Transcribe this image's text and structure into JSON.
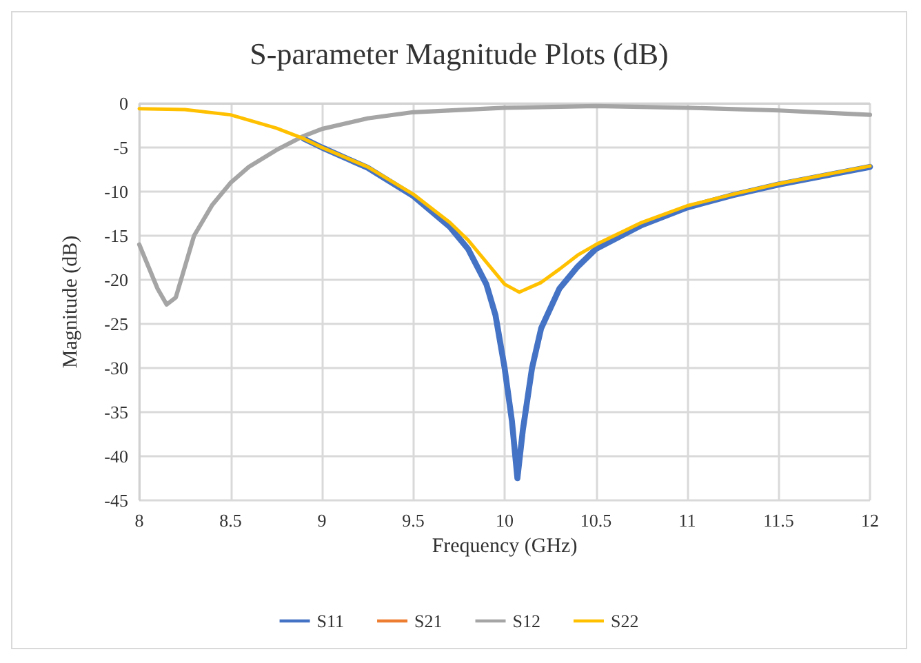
{
  "chart_data": {
    "type": "line",
    "title": "S-parameter Magnitude Plots (dB)",
    "xlabel": "Frequency (GHz)",
    "ylabel": "Magnitude (dB)",
    "xlim": [
      8,
      12
    ],
    "xticks": [
      8,
      8.5,
      9,
      9.5,
      10,
      10.5,
      11,
      11.5,
      12
    ],
    "ylim": [
      -45,
      0
    ],
    "yticks": [
      -45,
      -40,
      -35,
      -30,
      -25,
      -20,
      -15,
      -10,
      -5,
      0
    ],
    "grid": true,
    "legend": "bottom",
    "marker": "none",
    "line_style": "solid",
    "series": [
      {
        "name": "S11",
        "color": "#4472c4",
        "x": [
          8.9,
          9,
          9.25,
          9.5,
          9.7,
          9.8,
          9.9,
          9.95,
          10,
          10.04,
          10.07,
          10.1,
          10.15,
          10.2,
          10.3,
          10.4,
          10.5,
          10.75,
          11,
          11.25,
          11.5,
          11.75,
          12
        ],
        "values": [
          -4,
          -5,
          -7.3,
          -10.5,
          -14,
          -16.5,
          -20.5,
          -24,
          -30,
          -36,
          -42.5,
          -37,
          -30,
          -25.5,
          -21,
          -18.5,
          -16.5,
          -13.8,
          -11.8,
          -10.4,
          -9.2,
          -8.2,
          -7.2
        ]
      },
      {
        "name": "S21",
        "color": "#ed7d31"
      },
      {
        "name": "S12",
        "color": "#a5a5a5",
        "x": [
          8,
          8.05,
          8.1,
          8.15,
          8.2,
          8.25,
          8.3,
          8.4,
          8.5,
          8.6,
          8.75,
          8.9,
          9,
          9.25,
          9.5,
          10,
          10.5,
          11,
          11.5,
          12
        ],
        "values": [
          -16,
          -18.5,
          -21,
          -22.8,
          -22,
          -18.5,
          -15,
          -11.5,
          -9,
          -7.2,
          -5.3,
          -3.7,
          -2.9,
          -1.7,
          -1,
          -0.5,
          -0.3,
          -0.5,
          -0.8,
          -1.3
        ]
      },
      {
        "name": "S22",
        "color": "#ffc000",
        "x": [
          8,
          8.25,
          8.5,
          8.75,
          8.9,
          9,
          9.25,
          9.5,
          9.7,
          9.8,
          9.9,
          10,
          10.08,
          10.2,
          10.3,
          10.4,
          10.5,
          10.75,
          11,
          11.25,
          11.5,
          11.75,
          12
        ],
        "values": [
          -0.6,
          -0.7,
          -1.3,
          -2.8,
          -4,
          -5,
          -7.2,
          -10.3,
          -13.5,
          -15.5,
          -18,
          -20.5,
          -21.4,
          -20.3,
          -18.8,
          -17.2,
          -16,
          -13.5,
          -11.6,
          -10.3,
          -9.1,
          -8.1,
          -7.1
        ]
      }
    ]
  }
}
